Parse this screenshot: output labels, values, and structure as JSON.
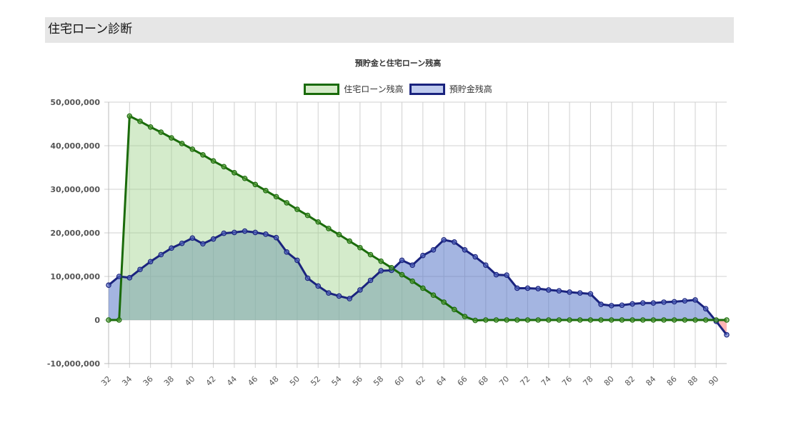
{
  "header": {
    "title": "住宅ローン診断"
  },
  "chart_data": {
    "type": "line",
    "title": "預貯金と住宅ローン残高",
    "xlabel": "",
    "ylabel": "",
    "ylim": [
      -10000000,
      50000000
    ],
    "yticks": [
      50000000,
      40000000,
      30000000,
      20000000,
      10000000,
      0,
      -10000000
    ],
    "ytick_labels": [
      "50,000,000",
      "40,000,000",
      "30,000,000",
      "20,000,000",
      "10,000,000",
      "0",
      "-10,000,000"
    ],
    "xtick_labels": [
      "32",
      "34",
      "36",
      "38",
      "40",
      "42",
      "44",
      "46",
      "48",
      "50",
      "52",
      "54",
      "56",
      "58",
      "60",
      "62",
      "64",
      "66",
      "68",
      "70",
      "72",
      "74",
      "76",
      "78",
      "80",
      "82",
      "84",
      "86",
      "88",
      "90"
    ],
    "grid": true,
    "legend_position": "top",
    "x": [
      32,
      33,
      34,
      35,
      36,
      37,
      38,
      39,
      40,
      41,
      42,
      43,
      44,
      45,
      46,
      47,
      48,
      49,
      50,
      51,
      52,
      53,
      54,
      55,
      56,
      57,
      58,
      59,
      60,
      61,
      62,
      63,
      64,
      65,
      66,
      67,
      68,
      69,
      70,
      71,
      72,
      73,
      74,
      75,
      76,
      77,
      78,
      79,
      80,
      81,
      82,
      83,
      84,
      85,
      86,
      87,
      88,
      89,
      90,
      91
    ],
    "series": [
      {
        "name": "住宅ローン残高",
        "color": "#1a6b0a",
        "fill": "rgba(160,210,140,0.45)",
        "values": [
          0,
          0,
          46800000,
          45600000,
          44300000,
          43100000,
          41800000,
          40500000,
          39200000,
          37900000,
          36500000,
          35200000,
          33800000,
          32500000,
          31100000,
          29700000,
          28300000,
          26900000,
          25400000,
          24000000,
          22500000,
          21000000,
          19600000,
          18100000,
          16600000,
          15000000,
          13500000,
          12000000,
          10400000,
          8900000,
          7300000,
          5700000,
          4100000,
          2400000,
          800000,
          -100000,
          0,
          0,
          0,
          0,
          0,
          0,
          0,
          0,
          0,
          0,
          0,
          0,
          0,
          0,
          0,
          0,
          0,
          0,
          0,
          0,
          0,
          0,
          0,
          0
        ]
      },
      {
        "name": "預貯金残高",
        "color": "#1a237e",
        "fill": "rgba(90,120,200,0.55)",
        "negative_fill": "rgba(255,150,150,0.7)",
        "values": [
          8000000,
          10000000,
          9700000,
          11600000,
          13400000,
          15000000,
          16500000,
          17600000,
          18800000,
          17500000,
          18600000,
          19900000,
          20100000,
          20400000,
          20100000,
          19700000,
          18900000,
          15600000,
          13700000,
          9600000,
          7800000,
          6200000,
          5500000,
          4900000,
          6900000,
          9100000,
          11300000,
          11400000,
          13700000,
          12600000,
          14800000,
          16100000,
          18400000,
          17900000,
          16100000,
          14500000,
          12600000,
          10400000,
          10300000,
          7300000,
          7300000,
          7200000,
          6900000,
          6700000,
          6400000,
          6200000,
          6000000,
          3600000,
          3300000,
          3400000,
          3700000,
          3900000,
          3900000,
          4100000,
          4200000,
          4400000,
          4600000,
          2600000,
          -300000,
          -3400000
        ]
      }
    ]
  },
  "legend": [
    {
      "label": "住宅ローン残高",
      "border": "#1a6b0a",
      "fill": "#d5ebc9"
    },
    {
      "label": "預貯金残高",
      "border": "#1a237e",
      "fill": "#bfcbee"
    }
  ]
}
